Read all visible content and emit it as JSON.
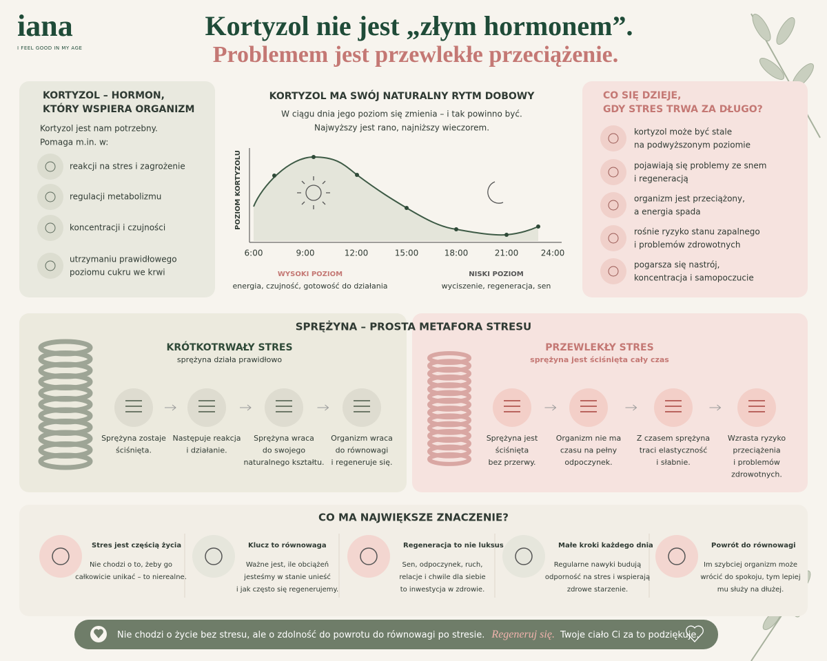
{
  "brand": {
    "logo": "iana",
    "tagline": "I FEEL GOOD IN MY AGE"
  },
  "header": {
    "title": "Kortyzol nie jest „złym hormonem”.",
    "subtitle": "Problemem jest przewlekłe przeciążenie."
  },
  "left_panel": {
    "title": [
      "KORTYZOL – HORMON,",
      "KTÓRY WSPIERA ORGANIZM"
    ],
    "intro": [
      "Kortyzol jest nam potrzebny.",
      "Pomaga m.in. w:"
    ],
    "items": [
      [
        "reakcji na stres i zagrożenie"
      ],
      [
        "regulacji metabolizmu"
      ],
      [
        "koncentracji i czujności"
      ],
      [
        "utrzymaniu prawidłowego",
        "poziomu cukru we krwi"
      ]
    ]
  },
  "rhythm": {
    "title": "KORTYZOL MA SWÓJ NATURALNY RYTM DOBOWY",
    "subtitle": [
      "W ciągu dnia jego poziom się zmienia – i tak powinno być.",
      "Najwyższy jest rano, najniższy wieczorem."
    ],
    "y_label": "POZIOM KORTYZOLU",
    "x_ticks": [
      "6:00",
      "9:00",
      "12:00",
      "15:00",
      "18:00",
      "21:00",
      "24:00"
    ],
    "high": {
      "label": "WYSOKI POZIOM",
      "text": "energia, czujność, gotowość do działania"
    },
    "low": {
      "label": "NISKI POZIOM",
      "text": "wyciszenie, regeneracja, sen"
    }
  },
  "right_panel": {
    "title": [
      "CO SIĘ DZIEJE,",
      "GDY STRES TRWA ZA DŁUGO?"
    ],
    "items": [
      [
        "kortyzol może być stale",
        "na podwyższonym poziomie"
      ],
      [
        "pojawiają się problemy ze snem",
        "i regeneracją"
      ],
      [
        "organizm jest przeciążony,",
        "a energia spada"
      ],
      [
        "rośnie ryzyko stanu zapalnego",
        "i problemów zdrowotnych"
      ],
      [
        "pogarsza się nastrój,",
        "koncentracja i samopoczucie"
      ]
    ]
  },
  "spring": {
    "title": "SPRĘŻYNA – PROSTA METAFORA STRESU",
    "short": {
      "title": "KRÓTKOTRWAŁY STRES",
      "subtitle": "sprężyna działa prawidłowo",
      "steps": [
        [
          "Sprężyna zostaje",
          "ściśnięta."
        ],
        [
          "Następuje reakcja",
          "i działanie."
        ],
        [
          "Sprężyna wraca",
          "do swojego",
          "naturalnego kształtu."
        ],
        [
          "Organizm wraca",
          "do równowagi",
          "i regeneruje się."
        ]
      ]
    },
    "chronic": {
      "title": "PRZEWLEKŁY STRES",
      "subtitle": "sprężyna jest ściśnięta cały czas",
      "steps": [
        [
          "Sprężyna jest",
          "ściśnięta",
          "bez przerwy."
        ],
        [
          "Organizm nie ma",
          "czasu na pełny",
          "odpoczynek."
        ],
        [
          "Z czasem sprężyna",
          "traci elastyczność",
          "i słabnie."
        ],
        [
          "Wzrasta ryzyko",
          "przeciążenia",
          "i problemów",
          "zdrowotnych."
        ]
      ]
    }
  },
  "essentials": {
    "title": "CO MA NAJWIĘKSZE ZNACZENIE?",
    "items": [
      {
        "title": "Stres jest częścią życia",
        "text": [
          "Nie chodzi o to, żeby go",
          "całkowicie unikać – to nierealne."
        ]
      },
      {
        "title": "Klucz to równowaga",
        "text": [
          "Ważne jest, ile obciążeń",
          "jesteśmy w stanie unieść",
          "i jak często się regenerujemy."
        ]
      },
      {
        "title": "Regeneracja to nie luksus",
        "text": [
          "Sen, odpoczynek, ruch,",
          "relacje i chwile dla siebie",
          "to inwestycja w zdrowie."
        ]
      },
      {
        "title": "Małe kroki każdego dnia",
        "text": [
          "Regularne nawyki budują",
          "odporność na stres i wspierają",
          "zdrowe starzenie."
        ]
      },
      {
        "title": "Powrót do równowagi",
        "text": [
          "Im szybciej organizm może",
          "wrócić do spokoju, tym lepiej",
          "mu służy na dłużej."
        ]
      }
    ]
  },
  "footer": {
    "text": "Nie chodzi o życie bez stresu, ale o zdolność do powrotu do równowagi po stresie.",
    "accent": "Regeneruj się.",
    "closing": "Twoje ciało Ci za to podziękuje."
  }
}
